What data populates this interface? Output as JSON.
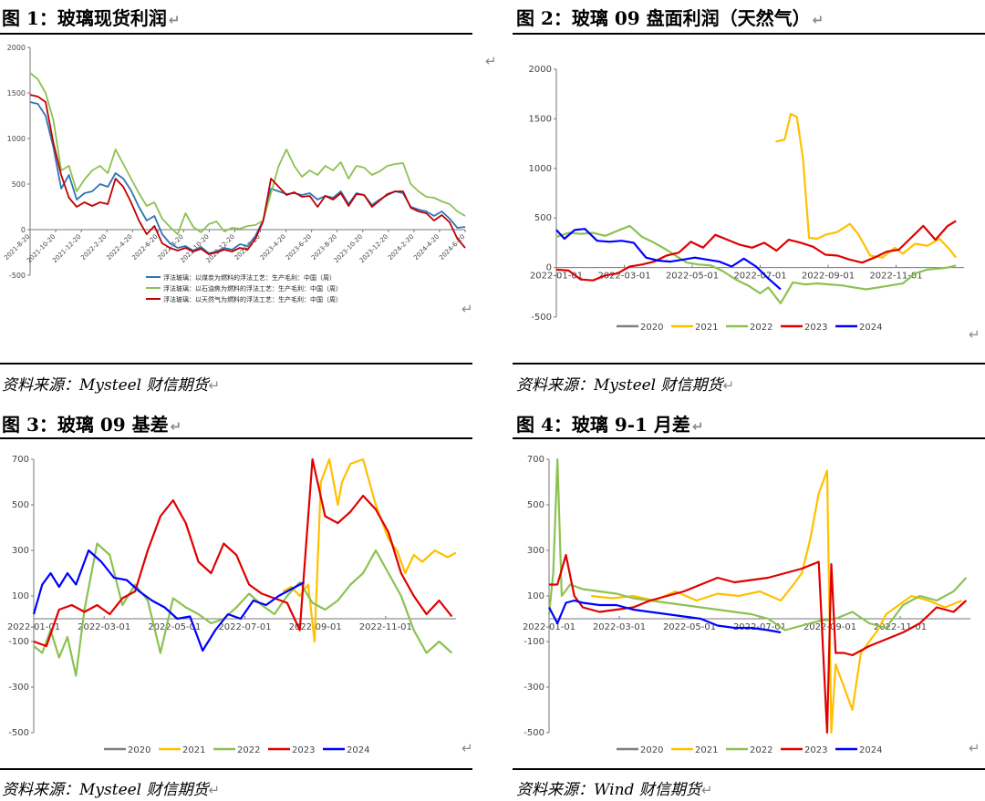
{
  "figures": [
    {
      "title": "图 1：玻璃现货利润",
      "source": "资料来源：Mysteel 财信期货"
    },
    {
      "title": "图 2：玻璃 09 盘面利润（天然气）",
      "source": "资料来源：Mysteel 财信期货"
    },
    {
      "title": "图 3：玻璃 09 基差",
      "source": "资料来源：Mysteel 财信期货"
    },
    {
      "title": "图 4：玻璃 9-1 月差",
      "source": "资料来源：Wind 财信期货"
    }
  ],
  "return_mark": "↵",
  "chart_data": [
    {
      "type": "line",
      "title": "",
      "ylim": [
        -500,
        2000
      ],
      "yticks": [
        -500,
        0,
        500,
        1000,
        1500,
        2000
      ],
      "xticks": [
        "2021-8-20",
        "2021-10-20",
        "2021-12-20",
        "2022-2-20",
        "2022-4-20",
        "2022-6-20",
        "2022-8-20",
        "2022-10-20",
        "2022-12-20",
        "2023-2-20",
        "2023-4-20",
        "2023-6-20",
        "2023-8-20",
        "2023-10-20",
        "2023-12-20",
        "2024-2-20",
        "2024-4-20",
        "2024-6-20"
      ],
      "legend_position": "bottom",
      "series": [
        {
          "name": "浮法玻璃：以煤炭为燃料的浮法工艺：生产毛利：中国（周）",
          "color": "#2e75b6",
          "values": [
            1400,
            1380,
            1250,
            900,
            450,
            600,
            330,
            400,
            420,
            500,
            470,
            620,
            560,
            430,
            250,
            100,
            150,
            -50,
            -150,
            -200,
            -180,
            -230,
            -190,
            -260,
            -240,
            -200,
            -220,
            -160,
            -180,
            -70,
            100,
            450,
            420,
            390,
            400,
            380,
            400,
            330,
            370,
            350,
            420,
            280,
            400,
            380,
            270,
            330,
            380,
            420,
            400,
            250,
            220,
            200,
            150,
            200,
            120,
            20,
            30
          ]
        },
        {
          "name": "浮法玻璃：以石油焦为燃料的浮法工艺：生产毛利：中国（周）",
          "color": "#8cc152",
          "values": [
            1720,
            1650,
            1500,
            1200,
            650,
            700,
            420,
            550,
            650,
            700,
            620,
            880,
            720,
            560,
            400,
            260,
            300,
            120,
            30,
            -50,
            180,
            30,
            -30,
            60,
            90,
            -20,
            20,
            10,
            40,
            50,
            100,
            400,
            700,
            880,
            700,
            580,
            650,
            600,
            700,
            650,
            740,
            560,
            700,
            680,
            600,
            640,
            700,
            720,
            730,
            500,
            420,
            360,
            350,
            310,
            280,
            200,
            150
          ]
        },
        {
          "name": "浮法玻璃：以天然气为燃料的浮法工艺：生产毛利：中国（周）",
          "color": "#c00000",
          "values": [
            1480,
            1460,
            1400,
            950,
            600,
            350,
            250,
            300,
            260,
            300,
            280,
            560,
            470,
            300,
            100,
            -50,
            40,
            -150,
            -200,
            -230,
            -200,
            -240,
            -210,
            -270,
            -250,
            -220,
            -240,
            -200,
            -220,
            -100,
            90,
            560,
            470,
            380,
            410,
            360,
            370,
            250,
            370,
            330,
            400,
            260,
            390,
            380,
            250,
            320,
            390,
            420,
            420,
            240,
            200,
            180,
            100,
            160,
            80,
            -100,
            -200
          ]
        }
      ]
    },
    {
      "type": "line",
      "title": "",
      "ylim": [
        -500,
        2000
      ],
      "yticks": [
        -500,
        0,
        500,
        1000,
        1500,
        2000
      ],
      "xticks": [
        "2022-01-01",
        "2022-03-01",
        "2022-05-01",
        "2022-07-01",
        "2022-09-01",
        "2022-11-01"
      ],
      "legend_position": "bottom",
      "series": [
        {
          "name": "2020",
          "color": "#7f7f7f",
          "values": []
        },
        {
          "name": "2021",
          "color": "#ffc000",
          "x": [
            0.538,
            0.56,
            0.575,
            0.59,
            0.605,
            0.62,
            0.64,
            0.66,
            0.69,
            0.72,
            0.74,
            0.77,
            0.8,
            0.83,
            0.85,
            0.88,
            0.91,
            0.94,
            0.965,
            0.98
          ],
          "values": [
            1270,
            1290,
            1550,
            1520,
            1100,
            300,
            290,
            330,
            360,
            440,
            340,
            120,
            100,
            200,
            140,
            240,
            220,
            290,
            180,
            100
          ]
        },
        {
          "name": "2022",
          "color": "#8cc152",
          "x": [
            0.0,
            0.03,
            0.06,
            0.09,
            0.12,
            0.15,
            0.18,
            0.21,
            0.24,
            0.27,
            0.3,
            0.32,
            0.35,
            0.38,
            0.41,
            0.44,
            0.47,
            0.5,
            0.52,
            0.55,
            0.58,
            0.61,
            0.64,
            0.67,
            0.7,
            0.73,
            0.76,
            0.79,
            0.82,
            0.85,
            0.88,
            0.91,
            0.94,
            0.96,
            0.98
          ],
          "values": [
            310,
            350,
            340,
            350,
            320,
            370,
            420,
            310,
            250,
            180,
            100,
            50,
            30,
            20,
            -40,
            -120,
            -180,
            -260,
            -200,
            -360,
            -150,
            -170,
            -160,
            -170,
            -180,
            -200,
            -220,
            -200,
            -180,
            -160,
            -60,
            -20,
            -10,
            0,
            20
          ]
        },
        {
          "name": "2023",
          "color": "#e00000",
          "x": [
            0.0,
            0.03,
            0.06,
            0.09,
            0.12,
            0.15,
            0.18,
            0.21,
            0.24,
            0.27,
            0.3,
            0.33,
            0.36,
            0.39,
            0.42,
            0.45,
            0.48,
            0.51,
            0.54,
            0.57,
            0.6,
            0.63,
            0.66,
            0.69,
            0.72,
            0.75,
            0.78,
            0.81,
            0.84,
            0.87,
            0.9,
            0.93,
            0.96,
            0.98
          ],
          "values": [
            -20,
            -30,
            -120,
            -130,
            -80,
            -60,
            10,
            30,
            60,
            120,
            150,
            260,
            200,
            330,
            280,
            230,
            200,
            250,
            170,
            280,
            250,
            210,
            130,
            120,
            80,
            50,
            100,
            160,
            180,
            300,
            420,
            280,
            420,
            470
          ]
        },
        {
          "name": "2024",
          "color": "#0000ff",
          "x": [
            0.0,
            0.02,
            0.045,
            0.07,
            0.1,
            0.13,
            0.16,
            0.19,
            0.22,
            0.25,
            0.28,
            0.31,
            0.34,
            0.37,
            0.4,
            0.43,
            0.46,
            0.49,
            0.52,
            0.55
          ],
          "values": [
            380,
            290,
            380,
            390,
            270,
            260,
            270,
            250,
            100,
            70,
            60,
            80,
            100,
            80,
            60,
            10,
            90,
            10,
            -110,
            -220
          ]
        }
      ]
    },
    {
      "type": "line",
      "title": "",
      "ylim": [
        -500,
        700
      ],
      "yticks": [
        -500,
        -300,
        -100,
        100,
        300,
        500,
        700
      ],
      "xticks": [
        "2022-01-01",
        "2022-03-01",
        "2022-05-01",
        "2022-07-01",
        "2022-09-01",
        "2022-11-01"
      ],
      "legend_position": "bottom",
      "series": [
        {
          "name": "2020",
          "color": "#7f7f7f",
          "values": []
        },
        {
          "name": "2021",
          "color": "#ffc000",
          "x": [
            0.59,
            0.61,
            0.63,
            0.65,
            0.665,
            0.68,
            0.7,
            0.72,
            0.73,
            0.75,
            0.78,
            0.81,
            0.84,
            0.86,
            0.88,
            0.9,
            0.92,
            0.95,
            0.98,
            1.0
          ],
          "values": [
            120,
            140,
            100,
            150,
            -100,
            600,
            700,
            500,
            600,
            680,
            700,
            500,
            350,
            300,
            200,
            280,
            250,
            300,
            270,
            290
          ]
        },
        {
          "name": "2022",
          "color": "#8cc152",
          "x": [
            0.0,
            0.02,
            0.04,
            0.06,
            0.08,
            0.1,
            0.12,
            0.15,
            0.18,
            0.21,
            0.24,
            0.27,
            0.3,
            0.33,
            0.36,
            0.39,
            0.42,
            0.45,
            0.48,
            0.51,
            0.54,
            0.57,
            0.6,
            0.63,
            0.66,
            0.69,
            0.72,
            0.75,
            0.78,
            0.81,
            0.84,
            0.87,
            0.9,
            0.93,
            0.96,
            0.99
          ],
          "values": [
            -120,
            -150,
            -50,
            -170,
            -80,
            -250,
            40,
            330,
            280,
            60,
            150,
            80,
            -150,
            90,
            50,
            20,
            -20,
            0,
            50,
            110,
            60,
            20,
            100,
            160,
            70,
            40,
            80,
            150,
            200,
            300,
            200,
            100,
            -50,
            -150,
            -100,
            -150
          ]
        },
        {
          "name": "2023",
          "color": "#e00000",
          "x": [
            0.0,
            0.03,
            0.06,
            0.09,
            0.12,
            0.15,
            0.18,
            0.21,
            0.24,
            0.27,
            0.3,
            0.33,
            0.36,
            0.39,
            0.42,
            0.45,
            0.48,
            0.51,
            0.54,
            0.57,
            0.6,
            0.63,
            0.66,
            0.69,
            0.72,
            0.75,
            0.78,
            0.81,
            0.84,
            0.87,
            0.9,
            0.93,
            0.96,
            0.99
          ],
          "values": [
            -100,
            -120,
            40,
            60,
            30,
            60,
            20,
            90,
            120,
            300,
            450,
            520,
            420,
            250,
            200,
            330,
            280,
            150,
            110,
            90,
            70,
            -50,
            700,
            450,
            420,
            470,
            540,
            480,
            380,
            200,
            100,
            20,
            80,
            10
          ]
        },
        {
          "name": "2024",
          "color": "#0000ff",
          "x": [
            0.0,
            0.02,
            0.04,
            0.06,
            0.08,
            0.1,
            0.13,
            0.16,
            0.19,
            0.22,
            0.25,
            0.28,
            0.31,
            0.34,
            0.37,
            0.4,
            0.43,
            0.46,
            0.49,
            0.52,
            0.55,
            0.58,
            0.61,
            0.64
          ],
          "values": [
            20,
            150,
            200,
            140,
            200,
            150,
            300,
            250,
            180,
            170,
            120,
            80,
            50,
            0,
            10,
            -140,
            -50,
            20,
            0,
            80,
            60,
            100,
            130,
            160
          ]
        }
      ]
    },
    {
      "type": "line",
      "title": "",
      "ylim": [
        -500,
        700
      ],
      "yticks": [
        -500,
        -300,
        -100,
        100,
        300,
        500,
        700
      ],
      "xticks": [
        "2022-01-01",
        "2022-03-01",
        "2022-05-01",
        "2022-07-01",
        "2022-09-01",
        "2022-11-01"
      ],
      "legend_position": "bottom",
      "series": [
        {
          "name": "2020",
          "color": "#7f7f7f",
          "values": []
        },
        {
          "name": "2021",
          "color": "#ffc000",
          "x": [
            0.1,
            0.15,
            0.2,
            0.25,
            0.3,
            0.35,
            0.4,
            0.45,
            0.5,
            0.55,
            0.58,
            0.6,
            0.62,
            0.64,
            0.66,
            0.67,
            0.68,
            0.7,
            0.72,
            0.74,
            0.76,
            0.78,
            0.8,
            0.83,
            0.86,
            0.9,
            0.94,
            0.98
          ],
          "values": [
            100,
            90,
            100,
            80,
            120,
            80,
            110,
            100,
            120,
            80,
            150,
            200,
            350,
            550,
            650,
            -500,
            -200,
            -300,
            -400,
            -150,
            -100,
            -50,
            20,
            60,
            100,
            80,
            50,
            80
          ]
        },
        {
          "name": "2022",
          "color": "#8cc152",
          "x": [
            0.0,
            0.01,
            0.02,
            0.03,
            0.05,
            0.08,
            0.12,
            0.16,
            0.2,
            0.24,
            0.28,
            0.32,
            0.36,
            0.4,
            0.44,
            0.48,
            0.52,
            0.56,
            0.6,
            0.64,
            0.68,
            0.72,
            0.76,
            0.8,
            0.84,
            0.88,
            0.92,
            0.96,
            0.99
          ],
          "values": [
            20,
            200,
            700,
            100,
            150,
            130,
            120,
            110,
            90,
            80,
            70,
            60,
            50,
            40,
            30,
            20,
            0,
            -50,
            -30,
            -10,
            0,
            30,
            -20,
            -40,
            60,
            100,
            80,
            120,
            180
          ]
        },
        {
          "name": "2023",
          "color": "#e00000",
          "x": [
            0.0,
            0.02,
            0.04,
            0.06,
            0.08,
            0.12,
            0.16,
            0.2,
            0.24,
            0.28,
            0.32,
            0.36,
            0.4,
            0.44,
            0.48,
            0.52,
            0.56,
            0.6,
            0.64,
            0.66,
            0.67,
            0.68,
            0.7,
            0.72,
            0.76,
            0.8,
            0.84,
            0.88,
            0.92,
            0.96,
            0.99
          ],
          "values": [
            150,
            150,
            280,
            100,
            50,
            30,
            40,
            50,
            80,
            100,
            120,
            150,
            180,
            160,
            170,
            180,
            200,
            220,
            250,
            -500,
            240,
            -150,
            -150,
            -160,
            -120,
            -90,
            -60,
            -20,
            50,
            30,
            80
          ]
        },
        {
          "name": "2024",
          "color": "#0000ff",
          "x": [
            0.0,
            0.02,
            0.04,
            0.06,
            0.08,
            0.12,
            0.16,
            0.2,
            0.24,
            0.28,
            0.32,
            0.36,
            0.4,
            0.44,
            0.48,
            0.52,
            0.55
          ],
          "values": [
            50,
            -20,
            70,
            80,
            70,
            60,
            60,
            40,
            30,
            20,
            10,
            0,
            -30,
            -40,
            -40,
            -50,
            -60
          ]
        }
      ]
    }
  ]
}
